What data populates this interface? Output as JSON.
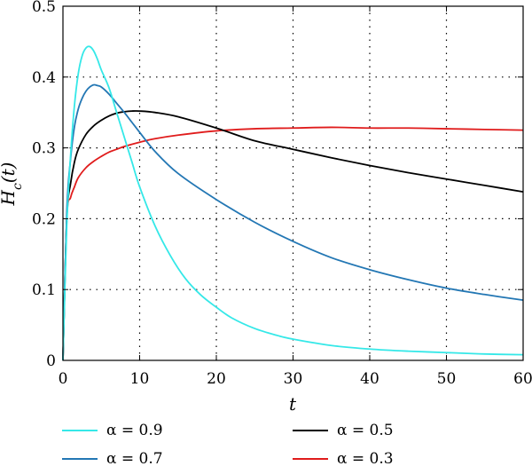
{
  "chart_data": {
    "type": "line",
    "title": "",
    "xlabel": "t",
    "ylabel": "H_c(t)",
    "xlim": [
      0,
      60
    ],
    "ylim": [
      0,
      0.5
    ],
    "xticks": [
      0,
      10,
      20,
      30,
      40,
      50,
      60
    ],
    "xtick_labels": [
      "0",
      "10",
      "20",
      "30",
      "40",
      "50",
      "60"
    ],
    "yticks": [
      0,
      0.1,
      0.2,
      0.3,
      0.4,
      0.5
    ],
    "ytick_labels": [
      "0",
      "0.1",
      "0.2",
      "0.3",
      "0.4",
      "0.5"
    ],
    "grid": true,
    "grid_style": "dotted",
    "legend_position": "bottom",
    "series": [
      {
        "name": "α = 0.9",
        "color": "#35e8e8",
        "x": [
          0,
          0.5,
          1,
          1.5,
          2,
          2.5,
          3,
          3.5,
          4,
          4.5,
          5,
          6,
          7,
          8,
          9,
          10,
          12,
          14,
          16,
          18,
          20,
          22,
          25,
          28,
          30,
          35,
          40,
          45,
          50,
          55,
          60
        ],
        "y": [
          0,
          0.19,
          0.29,
          0.36,
          0.405,
          0.43,
          0.441,
          0.443,
          0.437,
          0.425,
          0.41,
          0.385,
          0.35,
          0.315,
          0.28,
          0.245,
          0.19,
          0.148,
          0.115,
          0.092,
          0.075,
          0.06,
          0.045,
          0.035,
          0.03,
          0.021,
          0.016,
          0.013,
          0.011,
          0.009,
          0.008
        ]
      },
      {
        "name": "α = 0.7",
        "color": "#2377b4",
        "x": [
          0,
          0.5,
          1,
          1.5,
          2,
          2.5,
          3,
          3.5,
          4,
          4.5,
          5,
          6,
          7,
          8,
          9,
          10,
          12,
          15,
          20,
          25,
          30,
          35,
          40,
          45,
          50,
          55,
          60
        ],
        "y": [
          0,
          0.21,
          0.285,
          0.33,
          0.355,
          0.37,
          0.38,
          0.386,
          0.389,
          0.388,
          0.386,
          0.376,
          0.363,
          0.35,
          0.336,
          0.322,
          0.295,
          0.264,
          0.227,
          0.195,
          0.168,
          0.145,
          0.128,
          0.114,
          0.102,
          0.093,
          0.085
        ]
      },
      {
        "name": "α = 0.5",
        "color": "#000000",
        "x": [
          0,
          0.5,
          1,
          1.5,
          2,
          3,
          4,
          5,
          6,
          7,
          8,
          9,
          10,
          12,
          15,
          20,
          25,
          30,
          35,
          40,
          45,
          50,
          55,
          60
        ],
        "y": [
          0,
          0.2,
          0.25,
          0.28,
          0.298,
          0.319,
          0.331,
          0.339,
          0.345,
          0.349,
          0.351,
          0.352,
          0.352,
          0.35,
          0.344,
          0.328,
          0.31,
          0.298,
          0.286,
          0.275,
          0.265,
          0.256,
          0.247,
          0.238
        ]
      },
      {
        "name": "α = 0.3",
        "color": "#e01c1c",
        "x": [
          0,
          0.5,
          1,
          1.5,
          2,
          3,
          4,
          5,
          6,
          7,
          8,
          10,
          12,
          15,
          20,
          25,
          30,
          35,
          40,
          45,
          50,
          55,
          60
        ],
        "y": [
          0,
          0.2,
          0.23,
          0.245,
          0.258,
          0.272,
          0.281,
          0.288,
          0.294,
          0.298,
          0.302,
          0.308,
          0.313,
          0.318,
          0.324,
          0.327,
          0.328,
          0.329,
          0.328,
          0.328,
          0.327,
          0.326,
          0.325
        ]
      }
    ]
  }
}
